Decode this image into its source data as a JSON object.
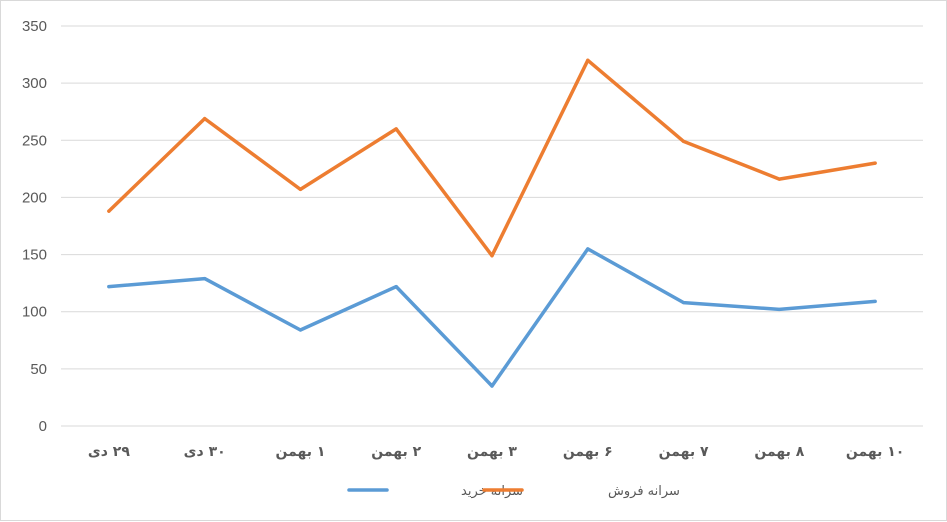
{
  "chart_data": {
    "type": "line",
    "title": "",
    "xlabel": "",
    "ylabel": "",
    "categories": [
      "۲۹ دی",
      "۳۰ دی",
      "۱ بهمن",
      "۲ بهمن",
      "۳ بهمن",
      "۶ بهمن",
      "۷ بهمن",
      "۸ بهمن",
      "۱۰ بهمن"
    ],
    "ylim": [
      0,
      350
    ],
    "yticks": [
      0,
      50,
      100,
      150,
      200,
      250,
      300,
      350
    ],
    "grid": true,
    "legend_position": "bottom",
    "series": [
      {
        "name": "سرانه خرید",
        "color": "#5b9bd5",
        "values": [
          122,
          129,
          84,
          122,
          35,
          155,
          108,
          102,
          109
        ]
      },
      {
        "name": "سرانه فروش",
        "color": "#ed7d31",
        "values": [
          188,
          269,
          207,
          260,
          149,
          320,
          249,
          216,
          230
        ]
      }
    ]
  }
}
